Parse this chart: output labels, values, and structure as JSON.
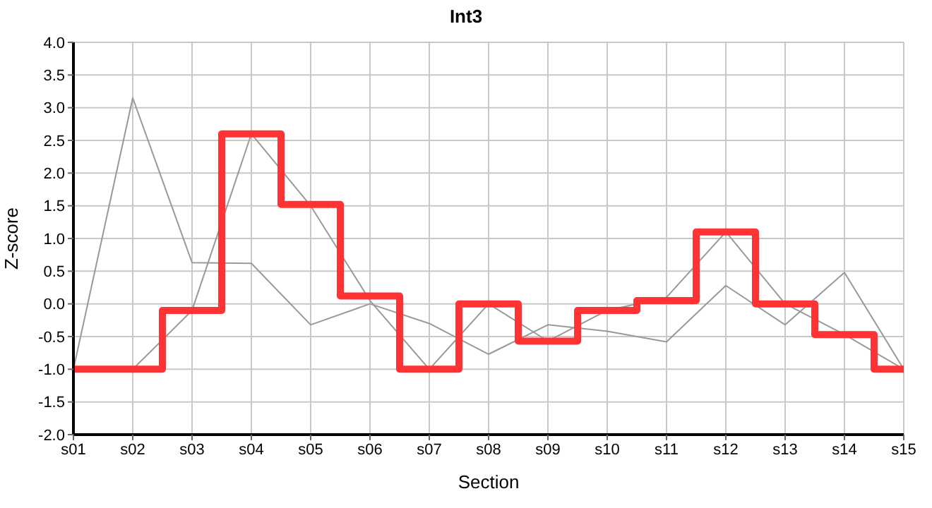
{
  "chart_data": {
    "type": "line",
    "title": "Int3",
    "xlabel": "Section",
    "ylabel": "Z-score",
    "categories": [
      "s01",
      "s02",
      "s03",
      "s04",
      "s05",
      "s06",
      "s07",
      "s08",
      "s09",
      "s10",
      "s11",
      "s12",
      "s13",
      "s14",
      "s15"
    ],
    "series": [
      {
        "color": "#999999",
        "values": [
          -1.0,
          3.15,
          0.63,
          0.62,
          -0.32,
          0.0,
          -0.3,
          -0.77,
          -0.32,
          -0.42,
          -0.58,
          0.28,
          -0.32,
          0.48,
          -1.0
        ]
      },
      {
        "color": "#999999",
        "values": [
          -1.0,
          -1.0,
          -0.1,
          2.6,
          1.5,
          0.05,
          -1.0,
          0.0,
          -0.57,
          -0.1,
          0.1,
          1.1,
          0.0,
          -0.47,
          -1.0
        ]
      },
      {
        "type": "step",
        "color": "#ff3333",
        "values": [
          -1.0,
          -1.0,
          -0.1,
          2.6,
          1.52,
          0.12,
          -1.0,
          0.0,
          -0.57,
          -0.1,
          0.05,
          1.1,
          0.0,
          -0.47,
          -1.0
        ]
      }
    ],
    "ylim": [
      -2.0,
      4.0
    ],
    "yticks": [
      {
        "value": -2,
        "label": "-2.0"
      },
      {
        "value": -1.5,
        "label": "-1.5"
      },
      {
        "value": -1,
        "label": "-1.0"
      },
      {
        "value": -0.5,
        "label": "-0.5"
      },
      {
        "value": 0,
        "label": "0.0"
      },
      {
        "value": 0.5,
        "label": "0.5"
      },
      {
        "value": 1,
        "label": "1.0"
      },
      {
        "value": 1.5,
        "label": "1.5"
      },
      {
        "value": 2,
        "label": "2.0"
      },
      {
        "value": 2.5,
        "label": "2.5"
      },
      {
        "value": 3,
        "label": "3.0"
      },
      {
        "value": 3.5,
        "label": "3.5"
      },
      {
        "value": 4,
        "label": "4.0"
      }
    ],
    "grid": true,
    "legend": false,
    "marker": "none",
    "line_style": "solid"
  }
}
